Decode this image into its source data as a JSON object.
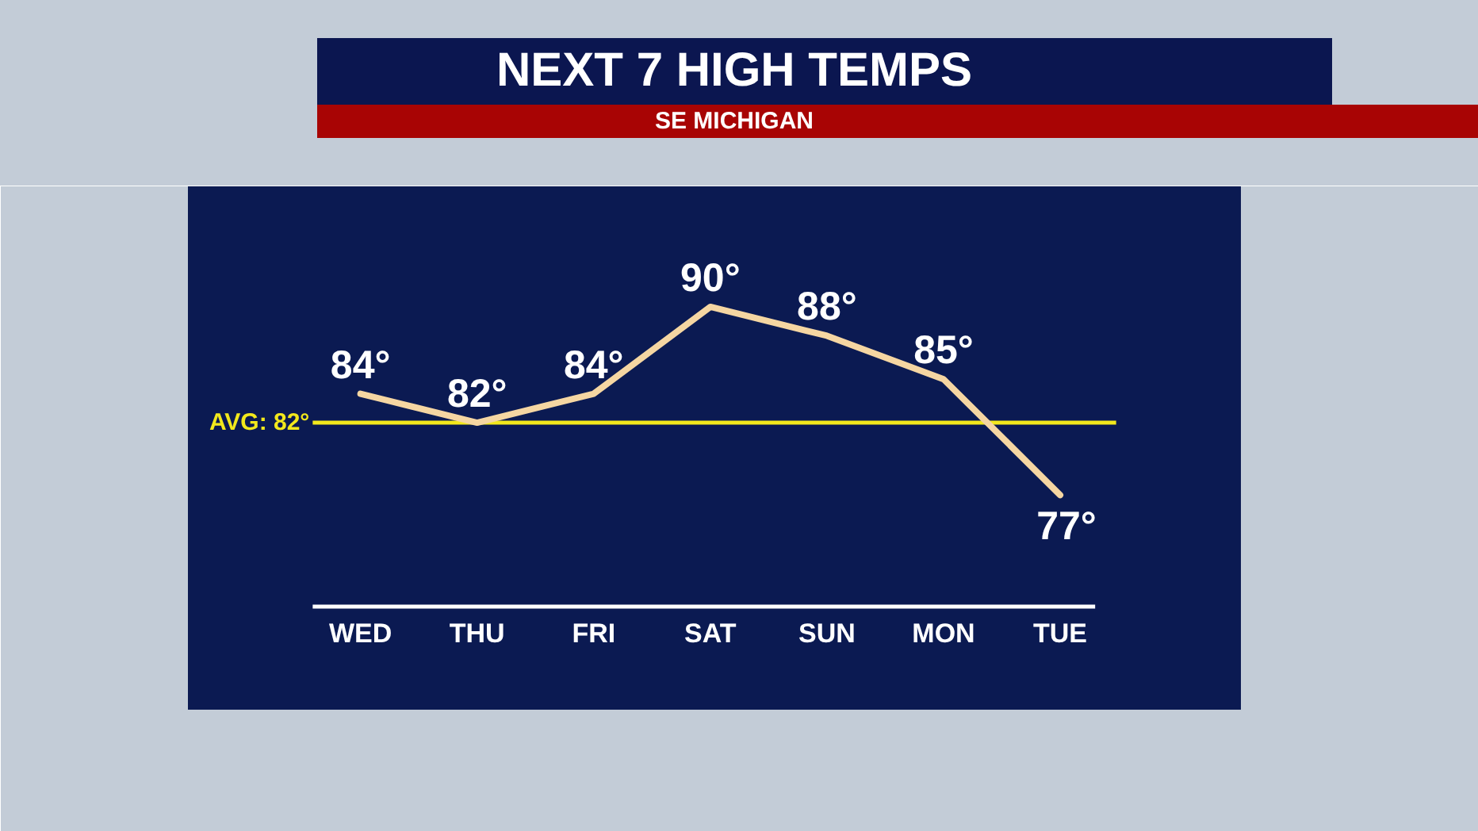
{
  "chart_data": {
    "type": "line",
    "title": "NEXT 7 HIGH TEMPS",
    "subtitle": "SE MICHIGAN",
    "categories": [
      "WED",
      "THU",
      "FRI",
      "SAT",
      "SUN",
      "MON",
      "TUE"
    ],
    "series": [
      {
        "color": "#f5d6a2",
        "values": [
          84,
          82,
          84,
          90,
          88,
          85,
          77
        ],
        "value_labels": [
          "84°",
          "82°",
          "84°",
          "90°",
          "88°",
          "85°",
          "77°"
        ]
      }
    ],
    "ref_lines": [
      {
        "axis": "y",
        "value": 82,
        "label": "AVG: 82°",
        "color": "#f2e81c"
      }
    ],
    "tick_labels": "x"
  }
}
